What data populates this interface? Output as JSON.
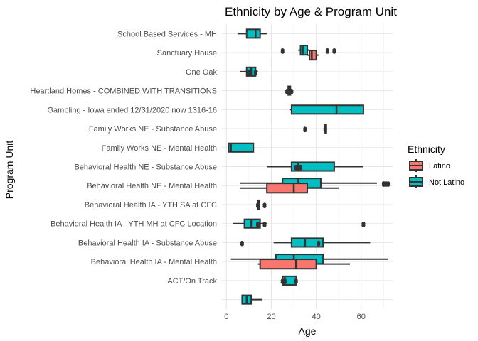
{
  "chart_data": {
    "type": "boxplot",
    "title": "Ethnicity by Age & Program Unit",
    "xlabel": "Age",
    "ylabel": "Program Unit",
    "xlim": [
      -2,
      74
    ],
    "xticks": [
      0,
      20,
      40,
      60
    ],
    "grid": true,
    "legend": {
      "title": "Ethnicity",
      "position": "right",
      "entries": [
        {
          "name": "Latino",
          "color": "#F8766D"
        },
        {
          "name": "Not Latino",
          "color": "#00BFC4"
        }
      ]
    },
    "categories": [
      "School Based Services - MH",
      "Sanctuary House",
      "One Oak",
      "Heartland Homes - COMBINED WITH TRANSITIONS",
      "Gambling - Iowa ended 12/31/2020 now 1316-16",
      "Family Works NE - Substance Abuse",
      "Family Works NE - Mental Health",
      "Behavioral Health NE - Substance Abuse",
      "Behavioral Health NE - Mental Health",
      "Behavioral Health IA - YTH SA at CFC",
      "Behavioral Health IA - YTH MH at CFC Location",
      "Behavioral Health IA - Substance Abuse",
      "Behavioral Health IA -  Mental Health",
      "ACT/On Track",
      ""
    ],
    "boxes": [
      {
        "category": 0,
        "group": "Not Latino",
        "min": 5,
        "q1": 9,
        "median": 13,
        "q3": 15,
        "max": 18,
        "outliers": []
      },
      {
        "category": 1,
        "group": "Not Latino",
        "min": 32,
        "q1": 33,
        "median": 34,
        "q3": 36,
        "max": 37,
        "outliers": [
          25,
          45,
          48
        ]
      },
      {
        "category": 1,
        "group": "Latino",
        "min": 36,
        "q1": 37,
        "median": 38,
        "q3": 40,
        "max": 41,
        "outliers": []
      },
      {
        "category": 2,
        "group": "Not Latino",
        "min": 6,
        "q1": 9,
        "median": 11,
        "q3": 13,
        "max": 14,
        "outliers": [
          10,
          13
        ]
      },
      {
        "category": 3,
        "group": "Not Latino",
        "min": 27,
        "q1": 27.5,
        "median": 28,
        "q3": 28.5,
        "max": 29,
        "outliers": [
          27,
          28,
          29
        ]
      },
      {
        "category": 4,
        "group": "Not Latino",
        "min": 28,
        "q1": 29,
        "median": 49,
        "q3": 61,
        "max": 61,
        "outliers": []
      },
      {
        "category": 5,
        "group": "Not Latino",
        "min": 44,
        "q1": 44,
        "median": 44,
        "q3": 44,
        "max": 44,
        "outliers": [
          35,
          44
        ]
      },
      {
        "category": 6,
        "group": "Not Latino",
        "min": 1,
        "q1": 1,
        "median": 2,
        "q3": 12,
        "max": 12,
        "outliers": []
      },
      {
        "category": 7,
        "group": "Not Latino",
        "min": 18,
        "q1": 29,
        "median": 32,
        "q3": 48,
        "max": 61,
        "outliers": [
          31,
          33
        ]
      },
      {
        "category": 8,
        "group": "Not Latino",
        "min": 6,
        "q1": 25,
        "median": 32,
        "q3": 42,
        "max": 67,
        "outliers": [
          70,
          71,
          72
        ]
      },
      {
        "category": 8,
        "group": "Latino",
        "min": 6,
        "q1": 18,
        "median": 30,
        "q3": 36,
        "max": 50,
        "outliers": []
      },
      {
        "category": 9,
        "group": "Not Latino",
        "min": 14,
        "q1": 14,
        "median": 14,
        "q3": 14,
        "max": 14,
        "outliers": [
          14,
          17
        ]
      },
      {
        "category": 10,
        "group": "Not Latino",
        "min": 3,
        "q1": 8,
        "median": 11,
        "q3": 15,
        "max": 18,
        "outliers": [
          14,
          17,
          61
        ]
      },
      {
        "category": 11,
        "group": "Not Latino",
        "min": 21,
        "q1": 29,
        "median": 35,
        "q3": 43,
        "max": 64,
        "outliers": [
          7,
          41
        ]
      },
      {
        "category": 12,
        "group": "Not Latino",
        "min": 2,
        "q1": 22,
        "median": 30,
        "q3": 43,
        "max": 72,
        "outliers": []
      },
      {
        "category": 12,
        "group": "Latino",
        "min": 14,
        "q1": 15,
        "median": 31,
        "q3": 40,
        "max": 55,
        "outliers": []
      },
      {
        "category": 13,
        "group": "Not Latino",
        "min": 25,
        "q1": 25,
        "median": 26,
        "q3": 31,
        "max": 31,
        "outliers": [
          25,
          26,
          31
        ]
      },
      {
        "category": 14,
        "group": "Not Latino",
        "min": 7,
        "q1": 7,
        "median": 9,
        "q3": 11,
        "max": 16,
        "outliers": []
      }
    ]
  }
}
